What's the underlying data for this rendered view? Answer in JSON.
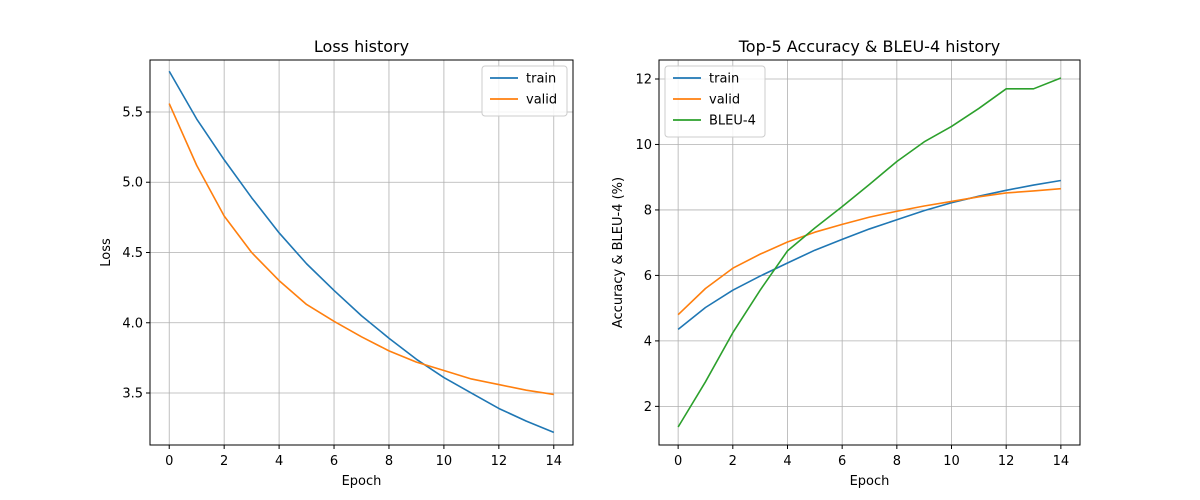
{
  "chart_data": [
    {
      "type": "line",
      "title": "Loss history",
      "xlabel": "Epoch",
      "ylabel": "Loss",
      "xlim": [
        -0.7,
        14.7
      ],
      "ylim": [
        3.13,
        5.87
      ],
      "xticks": [
        0,
        2,
        4,
        6,
        8,
        10,
        12,
        14
      ],
      "yticks": [
        3.5,
        4.0,
        4.5,
        5.0,
        5.5
      ],
      "ytick_labels": [
        "3.5",
        "4.0",
        "4.5",
        "5.0",
        "5.5"
      ],
      "grid": true,
      "legend_position": "upper right",
      "x": [
        0,
        1,
        2,
        3,
        4,
        5,
        6,
        7,
        8,
        9,
        10,
        11,
        12,
        13,
        14
      ],
      "series": [
        {
          "name": "train",
          "color": "#1f77b4",
          "values": [
            5.79,
            5.45,
            5.16,
            4.89,
            4.64,
            4.42,
            4.23,
            4.05,
            3.89,
            3.74,
            3.61,
            3.5,
            3.39,
            3.3,
            3.22
          ]
        },
        {
          "name": "valid",
          "color": "#ff7f0e",
          "values": [
            5.56,
            5.12,
            4.76,
            4.5,
            4.3,
            4.13,
            4.01,
            3.9,
            3.8,
            3.72,
            3.66,
            3.6,
            3.56,
            3.52,
            3.49
          ]
        }
      ]
    },
    {
      "type": "line",
      "title": "Top-5 Accuracy & BLEU-4 history",
      "xlabel": "Epoch",
      "ylabel": "Accuracy & BLEU-4 (%)",
      "xlim": [
        -0.7,
        14.7
      ],
      "ylim": [
        0.82,
        12.58
      ],
      "xticks": [
        0,
        2,
        4,
        6,
        8,
        10,
        12,
        14
      ],
      "yticks": [
        2,
        4,
        6,
        8,
        10,
        12
      ],
      "ytick_labels": [
        "2",
        "4",
        "6",
        "8",
        "10",
        "12"
      ],
      "grid": true,
      "legend_position": "upper left",
      "x": [
        0,
        1,
        2,
        3,
        4,
        5,
        6,
        7,
        8,
        9,
        10,
        11,
        12,
        13,
        14
      ],
      "series": [
        {
          "name": "train",
          "color": "#1f77b4",
          "values": [
            4.35,
            5.02,
            5.55,
            5.98,
            6.38,
            6.77,
            7.1,
            7.42,
            7.7,
            7.98,
            8.22,
            8.42,
            8.6,
            8.76,
            8.9
          ]
        },
        {
          "name": "valid",
          "color": "#ff7f0e",
          "values": [
            4.8,
            5.6,
            6.22,
            6.65,
            7.02,
            7.32,
            7.56,
            7.78,
            7.96,
            8.12,
            8.26,
            8.4,
            8.52,
            8.58,
            8.65
          ]
        },
        {
          "name": "BLEU-4",
          "color": "#2ca02c",
          "values": [
            1.37,
            2.75,
            4.25,
            5.55,
            6.75,
            7.45,
            8.1,
            8.78,
            9.48,
            10.08,
            10.55,
            11.1,
            11.7,
            11.7,
            12.03
          ]
        }
      ]
    }
  ]
}
